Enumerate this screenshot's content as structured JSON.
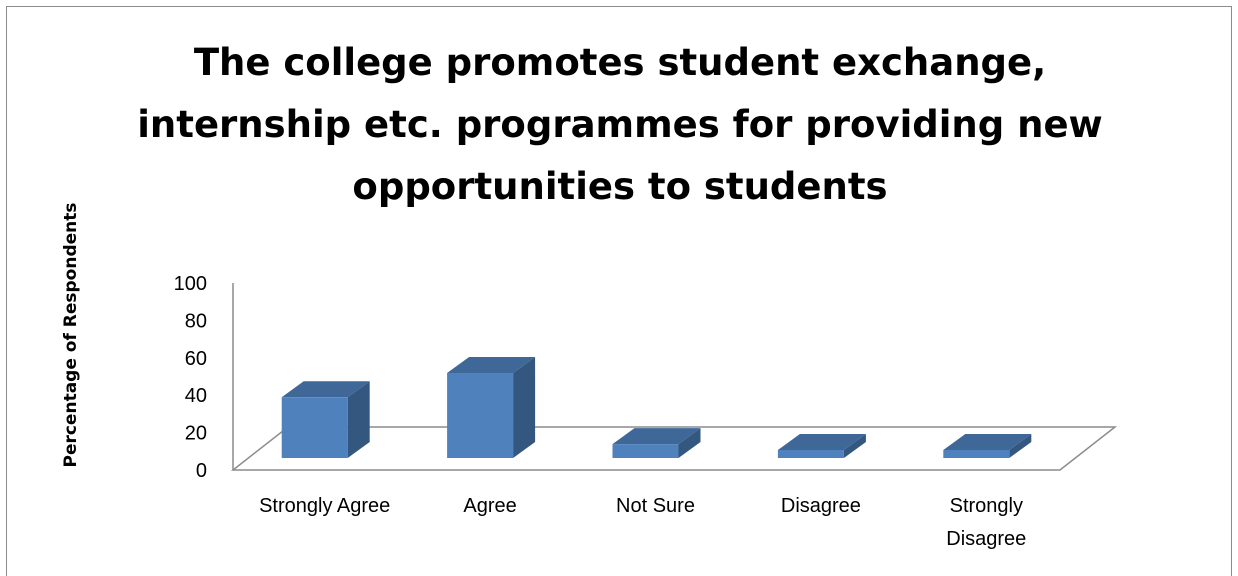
{
  "chart_data": {
    "type": "bar",
    "title_lines": [
      "The college promotes student exchange,",
      "internship etc. programmes for providing new",
      "opportunities to students"
    ],
    "xlabel": "",
    "ylabel": "Percentage of Respondents",
    "ylim": [
      0,
      100
    ],
    "yticks": [
      "0",
      "20",
      "40",
      "60",
      "80",
      "100"
    ],
    "categories": [
      {
        "lines": [
          "Strongly Agree"
        ]
      },
      {
        "lines": [
          "Agree"
        ]
      },
      {
        "lines": [
          "Not Sure"
        ]
      },
      {
        "lines": [
          "Disagree"
        ]
      },
      {
        "lines": [
          "Strongly",
          "Disagree"
        ]
      }
    ],
    "values": [
      35,
      49,
      8,
      4,
      4
    ],
    "style": "3d-column",
    "grid": false,
    "legend": "none",
    "colors": {
      "front": "#4f81bd",
      "side": "#34577f",
      "top": "#3f6797",
      "axis": "#8c8c8c"
    }
  }
}
